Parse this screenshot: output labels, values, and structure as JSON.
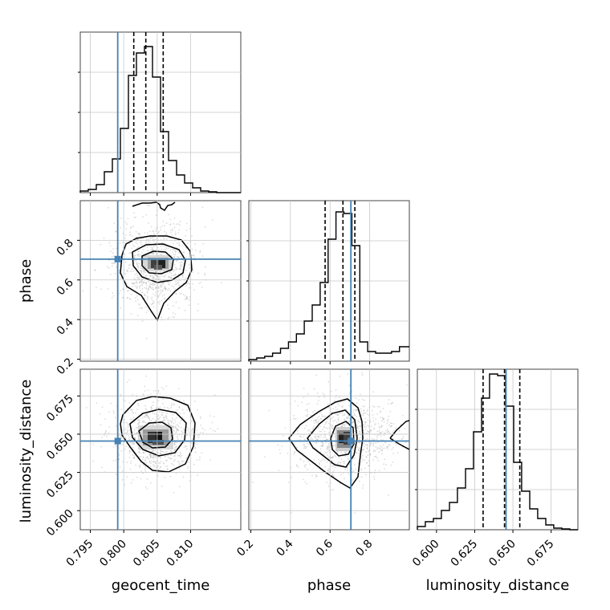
{
  "chart_data": {
    "type": "corner",
    "parameters": [
      {
        "name": "geocent_time",
        "label": "geocent_time",
        "range": [
          0.7935,
          0.8175
        ],
        "ticks": [
          "0.795",
          "0.800",
          "0.805",
          "0.810"
        ],
        "truth": 0.7991,
        "quantiles": [
          0.8015,
          0.8033,
          0.8059
        ]
      },
      {
        "name": "phase",
        "label": "phase",
        "range": [
          0.19,
          1.0
        ],
        "ticks": [
          "0.2",
          "0.4",
          "0.6",
          "0.8"
        ],
        "truth": 0.705,
        "quantiles": [
          0.575,
          0.665,
          0.725
        ]
      },
      {
        "name": "luminosity_distance",
        "label": "luminosity_distance",
        "range": [
          0.5875,
          0.6925
        ],
        "ticks": [
          "0.600",
          "0.625",
          "0.650",
          "0.675"
        ],
        "truth": 0.6455,
        "quantiles": [
          0.6305,
          0.6445,
          0.6545
        ]
      }
    ],
    "histograms": {
      "geocent_time": {
        "bins": [
          0.7935,
          0.7947,
          0.7959,
          0.7971,
          0.7983,
          0.7995,
          0.8007,
          0.8019,
          0.8031,
          0.8043,
          0.8055,
          0.8067,
          0.8079,
          0.8091,
          0.8103,
          0.8115,
          0.8127,
          0.8139,
          0.8151,
          0.8163,
          0.8175
        ],
        "counts": [
          0.01,
          0.02,
          0.05,
          0.13,
          0.21,
          0.4,
          0.73,
          0.87,
          0.91,
          0.72,
          0.38,
          0.2,
          0.11,
          0.06,
          0.03,
          0.01,
          0.005,
          0,
          0,
          0
        ]
      },
      "phase": {
        "bins": [
          0.19,
          0.23,
          0.27,
          0.31,
          0.35,
          0.39,
          0.43,
          0.47,
          0.51,
          0.55,
          0.59,
          0.63,
          0.67,
          0.71,
          0.75,
          0.79,
          0.83,
          0.87,
          0.91,
          0.95,
          1.0
        ],
        "counts": [
          0.01,
          0.02,
          0.03,
          0.05,
          0.08,
          0.12,
          0.17,
          0.25,
          0.35,
          0.49,
          0.76,
          0.93,
          0.92,
          0.72,
          0.12,
          0.06,
          0.05,
          0.05,
          0.06,
          0.09
        ]
      },
      "luminosity_distance": {
        "bins": [
          0.5875,
          0.5927,
          0.598,
          0.6032,
          0.6085,
          0.6137,
          0.619,
          0.6242,
          0.6295,
          0.6347,
          0.64,
          0.6452,
          0.6505,
          0.6557,
          0.661,
          0.6662,
          0.6715,
          0.6767,
          0.682,
          0.6872,
          0.6925
        ],
        "counts": [
          0.02,
          0.05,
          0.07,
          0.12,
          0.17,
          0.26,
          0.38,
          0.61,
          0.82,
          0.97,
          0.96,
          0.77,
          0.42,
          0.24,
          0.13,
          0.07,
          0.03,
          0.01,
          0.005,
          0
        ]
      }
    },
    "truth_point_color": "#4682b4",
    "contour_color": "#000000",
    "grid": true
  }
}
